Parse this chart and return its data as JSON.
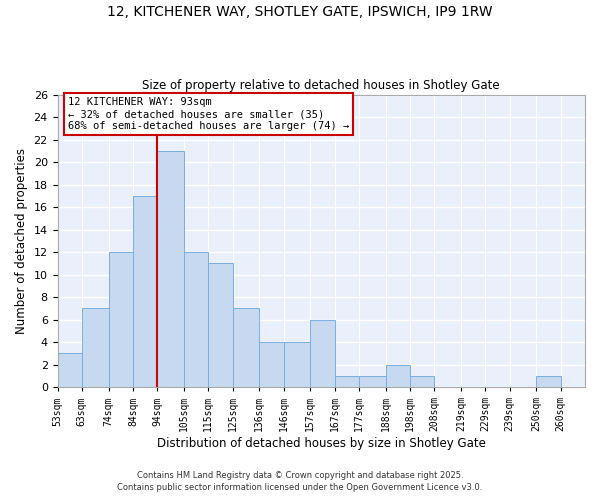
{
  "title1": "12, KITCHENER WAY, SHOTLEY GATE, IPSWICH, IP9 1RW",
  "title2": "Size of property relative to detached houses in Shotley Gate",
  "xlabel": "Distribution of detached houses by size in Shotley Gate",
  "ylabel": "Number of detached properties",
  "bin_labels": [
    "53sqm",
    "63sqm",
    "74sqm",
    "84sqm",
    "94sqm",
    "105sqm",
    "115sqm",
    "125sqm",
    "136sqm",
    "146sqm",
    "157sqm",
    "167sqm",
    "177sqm",
    "188sqm",
    "198sqm",
    "208sqm",
    "219sqm",
    "229sqm",
    "239sqm",
    "250sqm",
    "260sqm"
  ],
  "bar_values": [
    3,
    7,
    12,
    17,
    21,
    12,
    11,
    7,
    4,
    4,
    6,
    1,
    1,
    2,
    1,
    0,
    0,
    0,
    0,
    1,
    0
  ],
  "bar_color": "#c6d9f0",
  "bar_edgecolor": "#7aafdb",
  "bin_edges": [
    53,
    63,
    74,
    84,
    94,
    105,
    115,
    125,
    136,
    146,
    157,
    167,
    177,
    188,
    198,
    208,
    219,
    229,
    239,
    250,
    260,
    270
  ],
  "ylim": [
    0,
    26
  ],
  "yticks": [
    0,
    2,
    4,
    6,
    8,
    10,
    12,
    14,
    16,
    18,
    20,
    22,
    24,
    26
  ],
  "annotation_title": "12 KITCHENER WAY: 93sqm",
  "annotation_line1": "← 32% of detached houses are smaller (35)",
  "annotation_line2": "68% of semi-detached houses are larger (74) →",
  "footer1": "Contains HM Land Registry data © Crown copyright and database right 2025.",
  "footer2": "Contains public sector information licensed under the Open Government Licence v3.0.",
  "bg_color": "#ffffff",
  "plot_bg_color": "#eaf0fb",
  "grid_color": "#ffffff",
  "annotation_box_color": "#ffffff",
  "annotation_box_edgecolor": "#cc0000",
  "vline_color": "#cc0000",
  "vline_x": 94
}
